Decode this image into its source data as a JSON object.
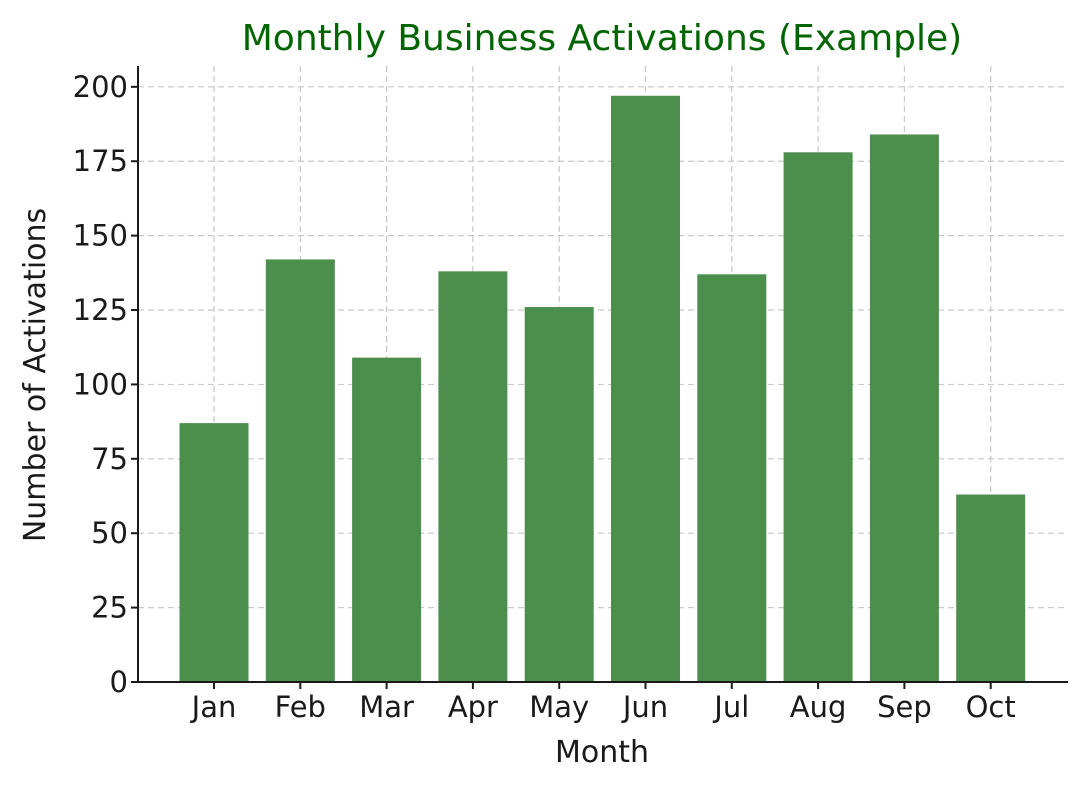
{
  "chart_data": {
    "type": "bar",
    "title": "Monthly Business Activations (Example)",
    "xlabel": "Month",
    "ylabel": "Number of Activations",
    "categories": [
      "Jan",
      "Feb",
      "Mar",
      "Apr",
      "May",
      "Jun",
      "Jul",
      "Aug",
      "Sep",
      "Oct"
    ],
    "values": [
      87,
      142,
      109,
      138,
      126,
      197,
      137,
      178,
      184,
      63
    ],
    "ylim": [
      0,
      207
    ],
    "yticks": [
      0,
      25,
      50,
      75,
      100,
      125,
      150,
      175,
      200
    ],
    "grid": true,
    "colors": {
      "bar": "#4c8f4c",
      "title": "#006400"
    }
  }
}
